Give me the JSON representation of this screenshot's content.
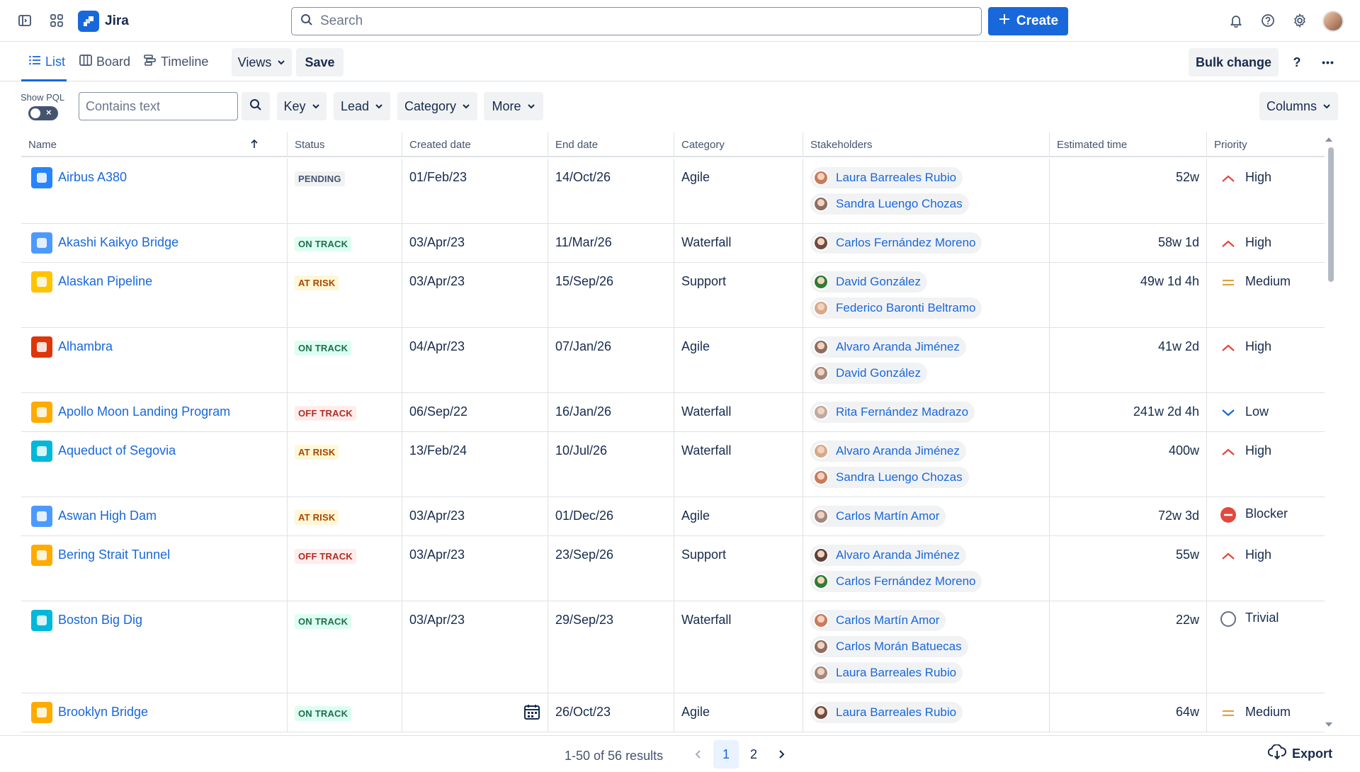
{
  "app": {
    "name": "Jira",
    "accent": "#1868db"
  },
  "topbar": {
    "search_placeholder": "Search",
    "create_label": "Create",
    "icons": [
      "sidebar-toggle-icon",
      "app-switcher-icon",
      "notifications-icon",
      "help-icon",
      "settings-icon"
    ]
  },
  "toolbar": {
    "tabs": [
      {
        "label": "List",
        "icon": "list-icon",
        "active": true
      },
      {
        "label": "Board",
        "icon": "board-icon",
        "active": false
      },
      {
        "label": "Timeline",
        "icon": "timeline-icon",
        "active": false
      }
    ],
    "views_label": "Views",
    "save_label": "Save",
    "bulk_change_label": "Bulk change",
    "help_label": "?",
    "more_label": "•••"
  },
  "filters": {
    "pql_label": "Show PQL",
    "text_placeholder": "Contains text",
    "key_label": "Key",
    "lead_label": "Lead",
    "category_label": "Category",
    "more_label": "More",
    "columns_label": "Columns"
  },
  "table": {
    "headers": {
      "name": "Name",
      "status": "Status",
      "created": "Created date",
      "end": "End date",
      "category": "Category",
      "stakeholders": "Stakeholders",
      "estimated": "Estimated time",
      "priority": "Priority"
    },
    "rows": [
      {
        "name": "Airbus A380",
        "icon_color": "#2684ff",
        "status": "PENDING",
        "status_kind": "pending",
        "created": "01/Feb/23",
        "end": "14/Oct/26",
        "category": "Agile",
        "stakeholders": [
          "Laura Barreales Rubio",
          "Sandra Luengo Chozas"
        ],
        "estimated": "52w",
        "priority": "High"
      },
      {
        "name": "Akashi Kaikyo Bridge",
        "icon_color": "#4c9aff",
        "status": "ON TRACK",
        "status_kind": "ontrack",
        "created": "03/Apr/23",
        "end": "11/Mar/26",
        "category": "Waterfall",
        "stakeholders": [
          "Carlos Fernández Moreno"
        ],
        "estimated": "58w 1d",
        "priority": "High"
      },
      {
        "name": "Alaskan Pipeline",
        "icon_color": "#ffc400",
        "status": "AT RISK",
        "status_kind": "atrisk",
        "created": "03/Apr/23",
        "end": "15/Sep/26",
        "category": "Support",
        "stakeholders": [
          "David González",
          "Federico Baronti Beltramo"
        ],
        "estimated": "49w 1d 4h",
        "priority": "Medium"
      },
      {
        "name": "Alhambra",
        "icon_color": "#de350b",
        "status": "ON TRACK",
        "status_kind": "ontrack",
        "created": "04/Apr/23",
        "end": "07/Jan/26",
        "category": "Agile",
        "stakeholders": [
          "Alvaro Aranda Jiménez",
          "David González"
        ],
        "estimated": "41w 2d",
        "priority": "High"
      },
      {
        "name": "Apollo Moon Landing Program",
        "icon_color": "#ffab00",
        "status": "OFF TRACK",
        "status_kind": "offtrack",
        "created": "06/Sep/22",
        "end": "16/Jan/26",
        "category": "Waterfall",
        "stakeholders": [
          "Rita Fernández Madrazo"
        ],
        "estimated": "241w 2d 4h",
        "priority": "Low"
      },
      {
        "name": "Aqueduct of Segovia",
        "icon_color": "#00b8d9",
        "status": "AT RISK",
        "status_kind": "atrisk",
        "created": "13/Feb/24",
        "end": "10/Jul/26",
        "category": "Waterfall",
        "stakeholders": [
          "Alvaro Aranda Jiménez",
          "Sandra Luengo Chozas"
        ],
        "estimated": "400w",
        "priority": "High"
      },
      {
        "name": "Aswan High Dam",
        "icon_color": "#4c9aff",
        "status": "AT RISK",
        "status_kind": "atrisk",
        "created": "03/Apr/23",
        "end": "01/Dec/26",
        "category": "Agile",
        "stakeholders": [
          "Carlos Martín Amor"
        ],
        "estimated": "72w 3d",
        "priority": "Blocker"
      },
      {
        "name": "Bering Strait Tunnel",
        "icon_color": "#ffab00",
        "status": "OFF TRACK",
        "status_kind": "offtrack",
        "created": "03/Apr/23",
        "end": "23/Sep/26",
        "category": "Support",
        "stakeholders": [
          "Alvaro Aranda Jiménez",
          "Carlos Fernández Moreno"
        ],
        "estimated": "55w",
        "priority": "High"
      },
      {
        "name": "Boston Big Dig",
        "icon_color": "#00b8d9",
        "status": "ON TRACK",
        "status_kind": "ontrack",
        "created": "03/Apr/23",
        "end": "29/Sep/23",
        "category": "Waterfall",
        "stakeholders": [
          "Carlos Martín Amor",
          "Carlos Morán Batuecas",
          "Laura Barreales Rubio"
        ],
        "estimated": "22w",
        "priority": "Trivial"
      },
      {
        "name": "Brooklyn Bridge",
        "icon_color": "#ffab00",
        "status": "ON TRACK",
        "status_kind": "ontrack",
        "created": "",
        "end": "26/Oct/23",
        "category": "Agile",
        "stakeholders": [
          "Laura Barreales Rubio"
        ],
        "estimated": "64w",
        "priority": "Medium",
        "created_picker": true
      }
    ]
  },
  "footer": {
    "results": "1-50 of 56 results",
    "pages": [
      "1",
      "2"
    ],
    "current_page": "1",
    "export_label": "Export"
  }
}
